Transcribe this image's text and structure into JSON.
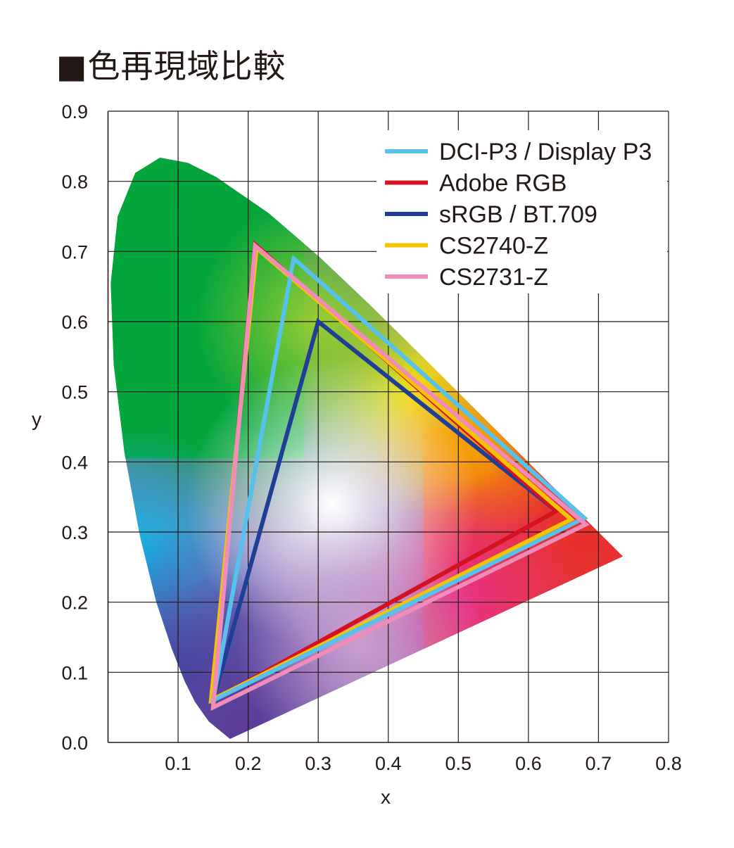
{
  "title": "■色再現域比較",
  "chart_data": {
    "type": "line",
    "title": "■色再現域比較",
    "xlabel": "x",
    "ylabel": "y",
    "xlim": [
      0,
      0.8
    ],
    "ylim": [
      0,
      0.9
    ],
    "xticks": [
      "0.1",
      "0.2",
      "0.3",
      "0.4",
      "0.5",
      "0.6",
      "0.7",
      "0.8"
    ],
    "yticks": [
      "0.0",
      "0.1",
      "0.2",
      "0.3",
      "0.4",
      "0.5",
      "0.6",
      "0.7",
      "0.8",
      "0.9"
    ],
    "grid": true,
    "legend_position": "top-right",
    "spectral_locus": [
      [
        0.1741,
        0.005
      ],
      [
        0.144,
        0.0297
      ],
      [
        0.1241,
        0.0578
      ],
      [
        0.1096,
        0.0868
      ],
      [
        0.0913,
        0.1327
      ],
      [
        0.0687,
        0.2007
      ],
      [
        0.0454,
        0.295
      ],
      [
        0.0235,
        0.4127
      ],
      [
        0.0082,
        0.5384
      ],
      [
        0.0039,
        0.6548
      ],
      [
        0.0139,
        0.7502
      ],
      [
        0.0389,
        0.812
      ],
      [
        0.0743,
        0.8338
      ],
      [
        0.1142,
        0.8262
      ],
      [
        0.1547,
        0.8059
      ],
      [
        0.2296,
        0.7543
      ],
      [
        0.3016,
        0.6923
      ],
      [
        0.3731,
        0.6245
      ],
      [
        0.4441,
        0.5547
      ],
      [
        0.5125,
        0.4866
      ],
      [
        0.5752,
        0.4242
      ],
      [
        0.627,
        0.3725
      ],
      [
        0.6915,
        0.3083
      ],
      [
        0.7347,
        0.2653
      ]
    ],
    "series": [
      {
        "name": "DCI-P3 / Display P3",
        "color": "#56c1ec",
        "points": [
          [
            0.68,
            0.32
          ],
          [
            0.265,
            0.69
          ],
          [
            0.15,
            0.06
          ]
        ]
      },
      {
        "name": "Adobe RGB",
        "color": "#d7111f",
        "points": [
          [
            0.64,
            0.33
          ],
          [
            0.21,
            0.71
          ],
          [
            0.15,
            0.06
          ]
        ]
      },
      {
        "name": "sRGB / BT.709",
        "color": "#1f3f96",
        "points": [
          [
            0.64,
            0.33
          ],
          [
            0.3,
            0.6
          ],
          [
            0.15,
            0.06
          ]
        ]
      },
      {
        "name": "CS2740-Z",
        "color": "#f5c400",
        "points": [
          [
            0.661,
            0.318
          ],
          [
            0.212,
            0.705
          ],
          [
            0.147,
            0.06
          ]
        ]
      },
      {
        "name": "CS2731-Z",
        "color": "#f08cb8",
        "points": [
          [
            0.682,
            0.311
          ],
          [
            0.21,
            0.708
          ],
          [
            0.15,
            0.05
          ]
        ]
      }
    ]
  }
}
